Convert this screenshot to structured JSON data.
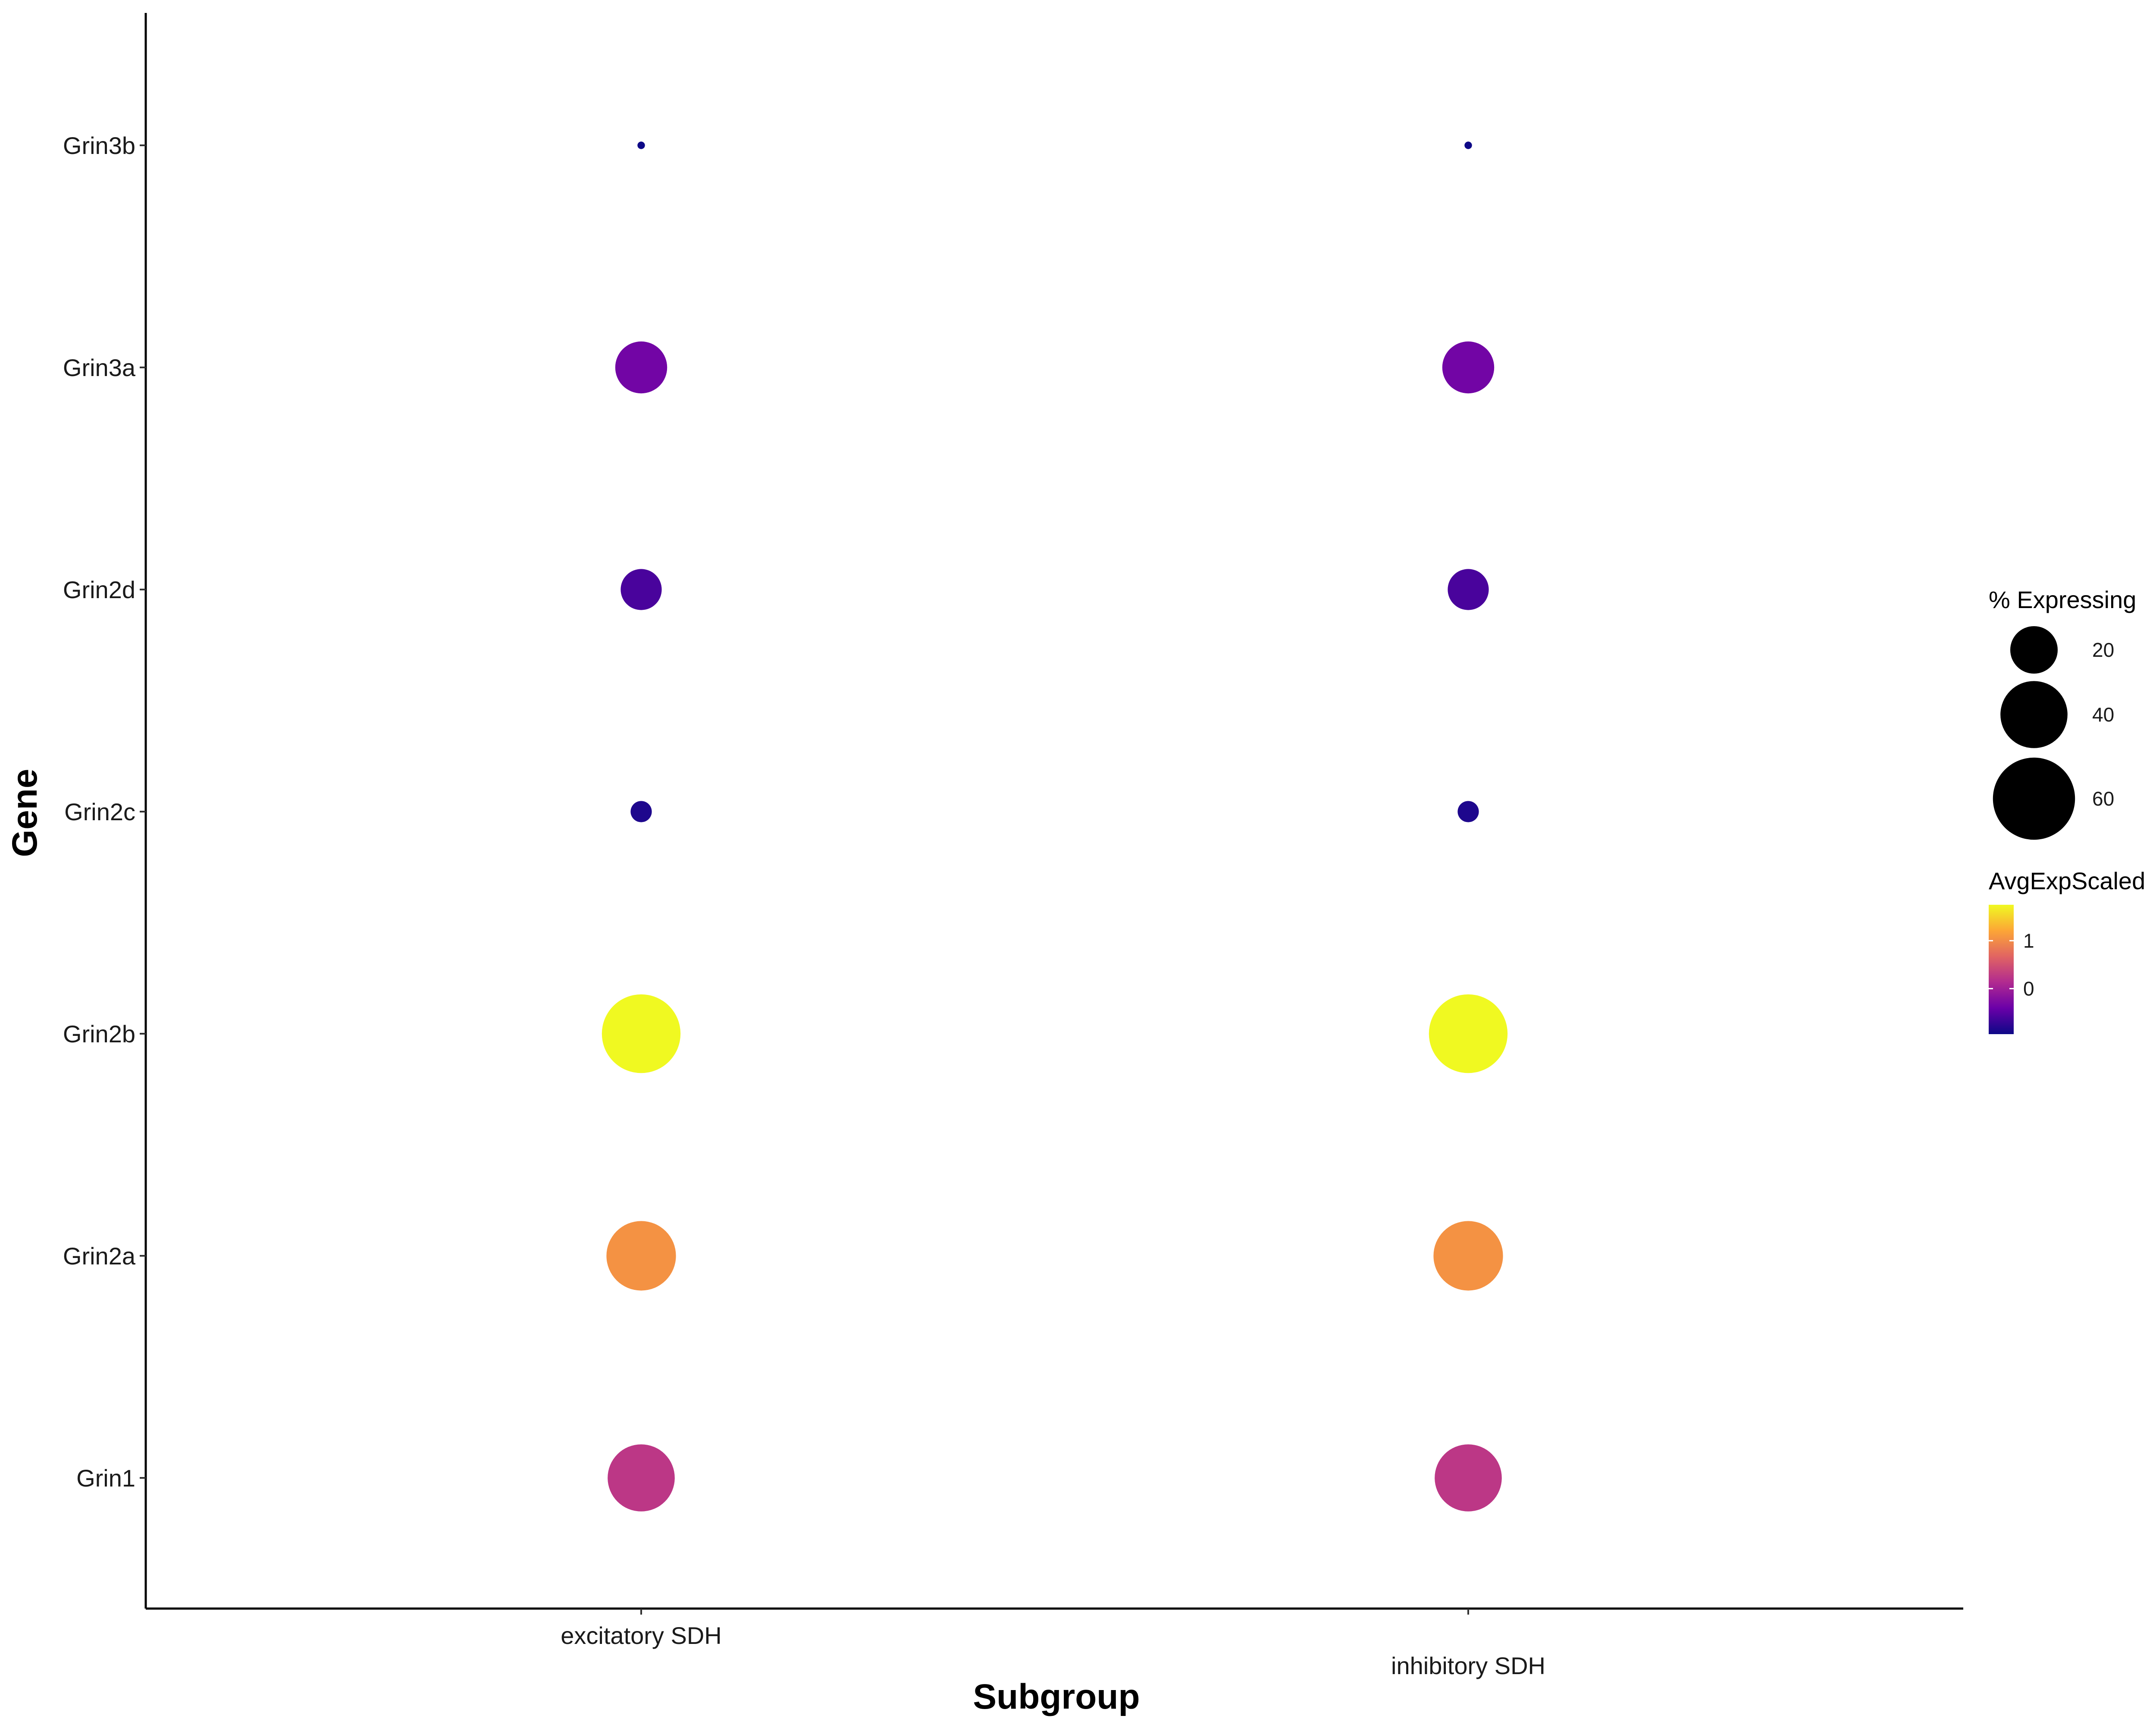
{
  "chart_data": {
    "type": "scatter",
    "subtype": "dot-plot",
    "xlabel": "Subgroup",
    "ylabel": "Gene",
    "x_categories": [
      "excitatory SDH",
      "inhibitory SDH"
    ],
    "y_categories": [
      "Grin1",
      "Grin2a",
      "Grin2b",
      "Grin2c",
      "Grin2d",
      "Grin3a",
      "Grin3b"
    ],
    "points": [
      {
        "gene": "Grin1",
        "subgroup": "excitatory SDH",
        "pct_expressing": 40,
        "avg_exp_scaled": 0.25
      },
      {
        "gene": "Grin2a",
        "subgroup": "excitatory SDH",
        "pct_expressing": 43,
        "avg_exp_scaled": 1.05
      },
      {
        "gene": "Grin2b",
        "subgroup": "excitatory SDH",
        "pct_expressing": 55,
        "avg_exp_scaled": 1.75
      },
      {
        "gene": "Grin2c",
        "subgroup": "excitatory SDH",
        "pct_expressing": 4,
        "avg_exp_scaled": -0.85
      },
      {
        "gene": "Grin2d",
        "subgroup": "excitatory SDH",
        "pct_expressing": 15,
        "avg_exp_scaled": -0.6
      },
      {
        "gene": "Grin3a",
        "subgroup": "excitatory SDH",
        "pct_expressing": 24,
        "avg_exp_scaled": -0.35
      },
      {
        "gene": "Grin3b",
        "subgroup": "excitatory SDH",
        "pct_expressing": 0.5,
        "avg_exp_scaled": -0.95
      },
      {
        "gene": "Grin1",
        "subgroup": "inhibitory SDH",
        "pct_expressing": 40,
        "avg_exp_scaled": 0.25
      },
      {
        "gene": "Grin2a",
        "subgroup": "inhibitory SDH",
        "pct_expressing": 43,
        "avg_exp_scaled": 1.05
      },
      {
        "gene": "Grin2b",
        "subgroup": "inhibitory SDH",
        "pct_expressing": 55,
        "avg_exp_scaled": 1.75
      },
      {
        "gene": "Grin2c",
        "subgroup": "inhibitory SDH",
        "pct_expressing": 4,
        "avg_exp_scaled": -0.85
      },
      {
        "gene": "Grin2d",
        "subgroup": "inhibitory SDH",
        "pct_expressing": 15,
        "avg_exp_scaled": -0.6
      },
      {
        "gene": "Grin3a",
        "subgroup": "inhibitory SDH",
        "pct_expressing": 24,
        "avg_exp_scaled": -0.35
      },
      {
        "gene": "Grin3b",
        "subgroup": "inhibitory SDH",
        "pct_expressing": 0.5,
        "avg_exp_scaled": -0.95
      }
    ],
    "legend_size": {
      "title": "% Expressing",
      "breaks": [
        20,
        40,
        60
      ]
    },
    "legend_color": {
      "title": "AvgExpScaled",
      "breaks": [
        1,
        0
      ],
      "range": [
        -0.95,
        1.75
      ],
      "colors": [
        "#0d0887",
        "#6a00a8",
        "#b12a90",
        "#e16462",
        "#fca636",
        "#f0f921"
      ]
    },
    "grid": false,
    "legend_position": "right"
  }
}
